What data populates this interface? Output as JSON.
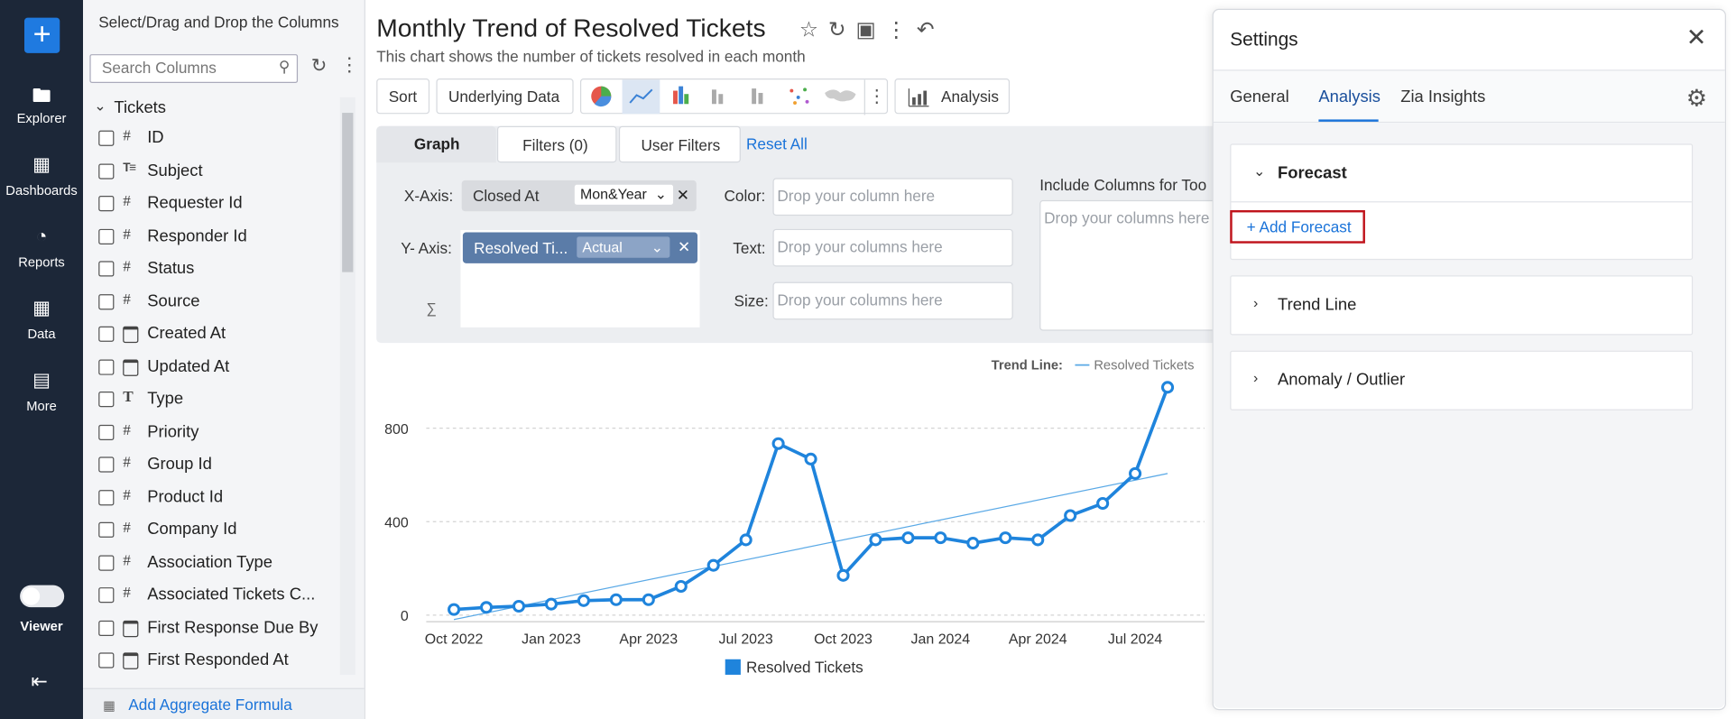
{
  "nav": {
    "items": [
      "Explorer",
      "Dashboards",
      "Reports",
      "Data",
      "More"
    ],
    "toggle": "Viewer"
  },
  "columns_panel": {
    "title": "Select/Drag and Drop the Columns",
    "search_placeholder": "Search Columns",
    "table": "Tickets",
    "columns": [
      {
        "kind": "#",
        "name": "ID"
      },
      {
        "kind": "longtext",
        "name": "Subject"
      },
      {
        "kind": "#",
        "name": "Requester Id"
      },
      {
        "kind": "#",
        "name": "Responder Id"
      },
      {
        "kind": "#",
        "name": "Status"
      },
      {
        "kind": "#",
        "name": "Source"
      },
      {
        "kind": "date",
        "name": "Created At"
      },
      {
        "kind": "date",
        "name": "Updated At"
      },
      {
        "kind": "T",
        "name": "Type"
      },
      {
        "kind": "#",
        "name": "Priority"
      },
      {
        "kind": "#",
        "name": "Group Id"
      },
      {
        "kind": "#",
        "name": "Product Id"
      },
      {
        "kind": "#",
        "name": "Company Id"
      },
      {
        "kind": "#",
        "name": "Association Type"
      },
      {
        "kind": "#",
        "name": "Associated Tickets C..."
      },
      {
        "kind": "date",
        "name": "First Response Due By"
      },
      {
        "kind": "date",
        "name": "First Responded At"
      }
    ],
    "footer": "Add Aggregate Formula"
  },
  "header": {
    "title": "Monthly Trend of Resolved Tickets",
    "subtitle": "This chart shows the number of tickets resolved in each month"
  },
  "toolbar": {
    "buttons": [
      "Sort",
      "Underlying Data"
    ],
    "analysis": "Analysis"
  },
  "tabs": {
    "items": [
      "Graph",
      "Filters  (0)",
      "User Filters"
    ],
    "reset": "Reset All"
  },
  "shelves": {
    "x_label": "X-Axis:",
    "x_field": "Closed At",
    "x_agg": "Mon&Year",
    "y_label": "Y- Axis:",
    "y_field": "Resolved Ti...",
    "y_agg": "Actual",
    "color_label": "Color:",
    "color_placeholder": "Drop your column here",
    "text_label": "Text:",
    "text_placeholder": "Drop your columns here",
    "size_label": "Size:",
    "size_placeholder": "Drop your columns here",
    "tooltip_label": "Include Columns for Too",
    "tooltip_placeholder": "Drop your columns here"
  },
  "settings": {
    "title": "Settings",
    "tabs": [
      "General",
      "Analysis",
      "Zia Insights"
    ],
    "active_tab": 1,
    "sections": [
      "Forecast",
      "Trend Line",
      "Anomaly / Outlier"
    ],
    "add_forecast": "+ Add Forecast"
  },
  "chart_data": {
    "type": "line",
    "categories": [
      "Oct 2022",
      null,
      null,
      "Jan 2023",
      null,
      null,
      "Apr 2023",
      null,
      null,
      "Jul 2023",
      null,
      null,
      "Oct 2023",
      null,
      null,
      "Jan 2024",
      null,
      null,
      "Apr 2024",
      null,
      null,
      "Jul 2024",
      null
    ],
    "series": [
      {
        "name": "Resolved Tickets",
        "color": "#1f84dc",
        "values": [
          24,
          33,
          38,
          47,
          62,
          66,
          66,
          123,
          213,
          322,
          734,
          668,
          170,
          322,
          331,
          331,
          308,
          331,
          322,
          426,
          478,
          606,
          975
        ]
      }
    ],
    "trend_line": {
      "label": "Trend Line:",
      "name": "Resolved Tickets",
      "color": "#5aa9e6",
      "values": [
        -19,
        606
      ]
    },
    "ylim": [
      -28,
      1023
    ],
    "yticks": [
      0,
      400,
      800
    ],
    "grid": true
  }
}
